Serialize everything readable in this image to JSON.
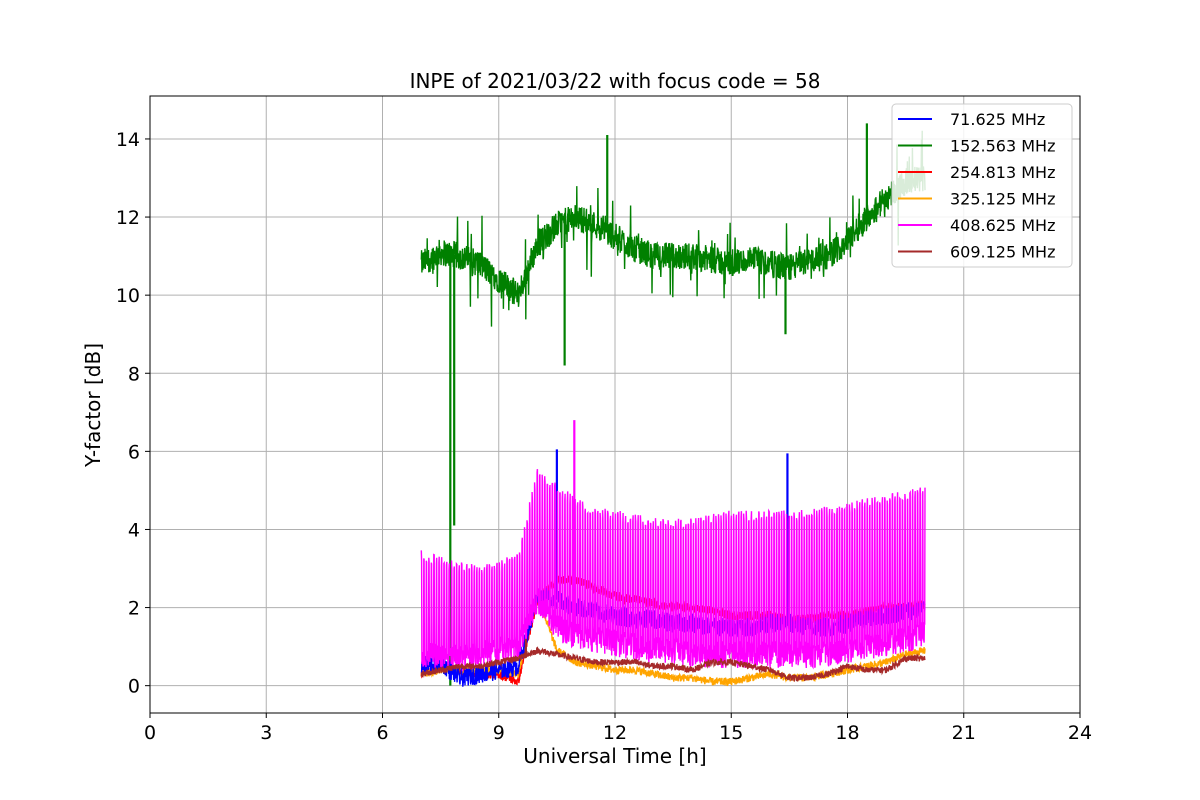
{
  "chart_data": {
    "type": "line",
    "title": "INPE of 2021/03/22 with focus code = 58",
    "xlabel": "Universal Time [h]",
    "ylabel": "Y-factor [dB]",
    "xlim": [
      0,
      24
    ],
    "ylim": [
      -0.7,
      15.1
    ],
    "x_ticks": [
      0,
      3,
      6,
      9,
      12,
      15,
      18,
      21,
      24
    ],
    "y_ticks": [
      0,
      2,
      4,
      6,
      8,
      10,
      12,
      14
    ],
    "grid": true,
    "legend_position": "top-right",
    "series": [
      {
        "name": " 71.625 MHz",
        "color": "#0000ff",
        "x": [
          7.0,
          7.5,
          8.0,
          8.5,
          9.0,
          9.5,
          10.0,
          10.5,
          11.0,
          11.5,
          12.0,
          12.5,
          13.0,
          13.5,
          14.0,
          14.5,
          15.0,
          15.5,
          16.0,
          16.5,
          17.0,
          17.5,
          18.0,
          18.5,
          19.0,
          19.5,
          20.0
        ],
        "values": [
          0.5,
          0.6,
          0.2,
          0.3,
          0.4,
          0.5,
          2.3,
          2.2,
          2.0,
          1.9,
          1.8,
          1.7,
          1.7,
          1.6,
          1.6,
          1.5,
          1.5,
          1.5,
          1.6,
          1.6,
          1.5,
          1.5,
          1.6,
          1.7,
          1.8,
          1.9,
          2.0
        ],
        "spikes": [
          [
            10.5,
            6.05
          ],
          [
            16.45,
            5.95
          ]
        ]
      },
      {
        "name": "152.563 MHz",
        "color": "#008000",
        "x": [
          7.0,
          7.5,
          8.0,
          8.5,
          9.0,
          9.5,
          10.0,
          10.5,
          11.0,
          11.5,
          12.0,
          12.5,
          13.0,
          13.5,
          14.0,
          14.5,
          15.0,
          15.5,
          16.0,
          16.5,
          17.0,
          17.5,
          18.0,
          18.5,
          19.0,
          19.5,
          20.0
        ],
        "values": [
          10.8,
          11.1,
          11.0,
          10.8,
          10.4,
          10.0,
          11.3,
          11.8,
          12.0,
          11.8,
          11.5,
          11.2,
          11.0,
          11.0,
          11.0,
          10.9,
          10.8,
          10.9,
          10.8,
          10.7,
          10.9,
          11.0,
          11.4,
          12.0,
          12.5,
          12.9,
          13.0
        ],
        "spikes": [
          [
            7.75,
            0.0
          ],
          [
            7.85,
            4.1
          ],
          [
            10.7,
            8.2
          ],
          [
            11.8,
            14.1
          ],
          [
            16.4,
            9.0
          ],
          [
            18.5,
            14.4
          ]
        ]
      },
      {
        "name": "254.813 MHz",
        "color": "#ff0000",
        "x": [
          7.0,
          7.5,
          8.0,
          8.5,
          9.0,
          9.5,
          10.0,
          10.5,
          11.0,
          11.5,
          12.0,
          12.5,
          13.0,
          13.5,
          14.0,
          14.5,
          15.0,
          15.5,
          16.0,
          16.5,
          17.0,
          17.5,
          18.0,
          18.5,
          19.0,
          19.5,
          20.0
        ],
        "values": [
          0.3,
          0.5,
          0.4,
          0.3,
          0.3,
          0.1,
          2.2,
          2.7,
          2.7,
          2.5,
          2.3,
          2.2,
          2.1,
          2.0,
          2.0,
          1.9,
          1.8,
          1.8,
          1.8,
          1.7,
          1.7,
          1.8,
          1.8,
          1.9,
          2.0,
          2.0,
          2.1
        ],
        "spikes": []
      },
      {
        "name": "325.125 MHz",
        "color": "#ffa500",
        "x": [
          7.0,
          7.5,
          8.0,
          8.5,
          9.0,
          9.5,
          10.0,
          10.5,
          11.0,
          11.5,
          12.0,
          12.5,
          13.0,
          13.5,
          14.0,
          14.5,
          15.0,
          15.5,
          16.0,
          16.5,
          17.0,
          17.5,
          18.0,
          18.5,
          19.0,
          19.5,
          20.0
        ],
        "values": [
          0.3,
          0.4,
          0.4,
          0.4,
          0.4,
          0.3,
          2.3,
          0.9,
          0.6,
          0.5,
          0.4,
          0.4,
          0.3,
          0.2,
          0.2,
          0.1,
          0.1,
          0.2,
          0.3,
          0.2,
          0.2,
          0.3,
          0.4,
          0.5,
          0.6,
          0.8,
          0.9
        ],
        "spikes": []
      },
      {
        "name": "408.625 MHz",
        "color": "#ff00ff",
        "x": [
          7.0,
          7.5,
          8.0,
          8.5,
          9.0,
          9.5,
          10.0,
          10.5,
          11.0,
          11.5,
          12.0,
          12.5,
          13.0,
          13.5,
          14.0,
          14.5,
          15.0,
          15.5,
          16.0,
          16.5,
          17.0,
          17.5,
          18.0,
          18.5,
          19.0,
          19.5,
          20.0
        ],
        "values": [
          0.8,
          0.7,
          0.7,
          0.8,
          0.9,
          1.0,
          2.2,
          1.5,
          1.3,
          1.2,
          1.1,
          1.0,
          0.9,
          0.9,
          0.8,
          0.8,
          0.8,
          0.8,
          0.8,
          0.8,
          0.8,
          0.8,
          0.9,
          1.0,
          1.1,
          1.2,
          1.3
        ],
        "peaks": [
          3.5,
          3.3,
          3.2,
          3.1,
          3.2,
          3.4,
          5.6,
          5.2,
          4.8,
          4.6,
          4.5,
          4.4,
          4.3,
          4.3,
          4.3,
          4.4,
          4.5,
          4.5,
          4.5,
          4.5,
          4.5,
          4.6,
          4.7,
          4.8,
          4.9,
          5.0,
          5.1
        ],
        "spikes": [
          [
            10.95,
            6.8
          ]
        ]
      },
      {
        "name": "609.125 MHz",
        "color": "#a52a2a",
        "x": [
          7.0,
          7.5,
          8.0,
          8.5,
          9.0,
          9.5,
          10.0,
          10.5,
          11.0,
          11.5,
          12.0,
          12.5,
          13.0,
          13.5,
          14.0,
          14.5,
          15.0,
          15.5,
          16.0,
          16.5,
          17.0,
          17.5,
          18.0,
          18.5,
          19.0,
          19.5,
          20.0
        ],
        "values": [
          0.3,
          0.4,
          0.5,
          0.5,
          0.6,
          0.7,
          0.9,
          0.8,
          0.7,
          0.6,
          0.6,
          0.6,
          0.5,
          0.5,
          0.4,
          0.6,
          0.6,
          0.5,
          0.4,
          0.2,
          0.2,
          0.3,
          0.5,
          0.4,
          0.4,
          0.7,
          0.7
        ],
        "spikes": [
          [
            9.7,
            1.2
          ]
        ]
      }
    ]
  }
}
